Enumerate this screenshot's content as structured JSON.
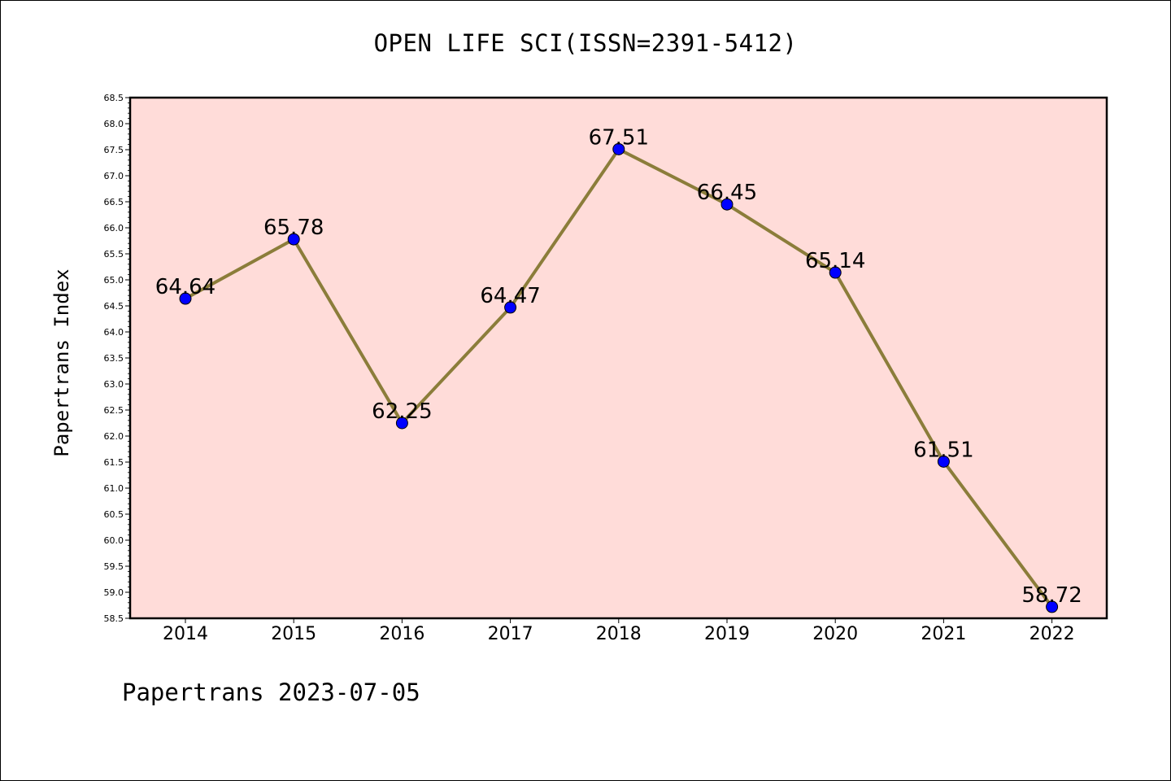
{
  "chart_data": {
    "type": "line",
    "title": "OPEN LIFE SCI(ISSN=2391-5412)",
    "ylabel": "Papertrans Index",
    "xlabel": "",
    "x": [
      "2014",
      "2015",
      "2016",
      "2017",
      "2018",
      "2019",
      "2020",
      "2021",
      "2022"
    ],
    "values": [
      64.64,
      65.78,
      62.25,
      64.47,
      67.51,
      66.45,
      65.14,
      61.51,
      58.72
    ],
    "data_labels": [
      "64.64",
      "65.78",
      "62.25",
      "64.47",
      "67.51",
      "66.45",
      "65.14",
      "61.51",
      "58.72"
    ],
    "ylim": [
      58.5,
      68.5
    ],
    "ytick_step": 0.5,
    "grid": false,
    "background_color": "#ffdcd9",
    "line_color": "#8b7d3a",
    "marker_color": "#0000ff"
  },
  "footer": "Papertrans 2023-07-05"
}
